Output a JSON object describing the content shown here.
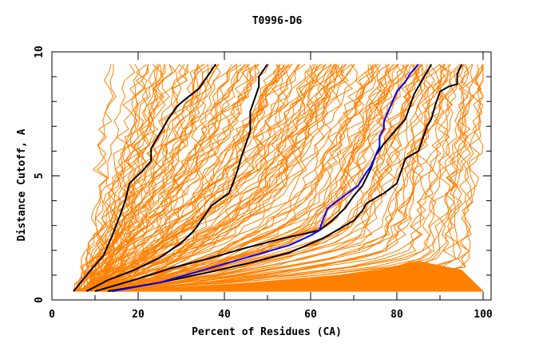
{
  "chart_data": {
    "type": "line",
    "title": "T0996-D6",
    "xlabel": "Percent of Residues (CA)",
    "ylabel": "Distance Cutoff, A",
    "xlim": [
      0,
      100
    ],
    "ylim": [
      0,
      10
    ],
    "x_ticks": [
      0,
      20,
      40,
      60,
      80,
      100
    ],
    "x_tick_labels": [
      "0",
      "20",
      "40",
      "60",
      "80",
      "100"
    ],
    "x_minor_ticks": [
      10,
      30,
      50,
      70,
      90
    ],
    "y_ticks": [
      0,
      5,
      10
    ],
    "y_tick_labels": [
      "0",
      "5",
      "10"
    ],
    "y_minor_ticks": [
      1,
      2,
      3,
      4,
      6,
      7,
      8,
      9
    ],
    "grid": false,
    "legend": "none",
    "colors": {
      "models": "#ff8000",
      "highlight_black": "#000000",
      "highlight_blue": "#0000ff"
    },
    "background_series": {
      "name": "all models (orange)",
      "count_approx": 150,
      "y_range": [
        0.35,
        9.5
      ],
      "x_start_range": [
        5,
        20
      ],
      "x_end_range": [
        15,
        100
      ]
    },
    "series": [
      {
        "name": "black-1",
        "color": "#000000",
        "points": [
          [
            5,
            0.35
          ],
          [
            9,
            1.2
          ],
          [
            12,
            1.8
          ],
          [
            14,
            2.6
          ],
          [
            16,
            3.5
          ],
          [
            17,
            4.0
          ],
          [
            18,
            4.7
          ],
          [
            21,
            5.2
          ],
          [
            23,
            5.6
          ],
          [
            23,
            6.1
          ],
          [
            25,
            6.7
          ],
          [
            27,
            7.3
          ],
          [
            29,
            7.8
          ],
          [
            31,
            8.1
          ],
          [
            34,
            8.5
          ],
          [
            36,
            9.0
          ],
          [
            38,
            9.5
          ]
        ]
      },
      {
        "name": "black-2",
        "color": "#000000",
        "points": [
          [
            8,
            0.35
          ],
          [
            13,
            0.8
          ],
          [
            19,
            1.2
          ],
          [
            25,
            1.7
          ],
          [
            30,
            2.3
          ],
          [
            33,
            2.8
          ],
          [
            35,
            3.3
          ],
          [
            37,
            3.8
          ],
          [
            41,
            4.3
          ],
          [
            42,
            4.7
          ],
          [
            43,
            5.2
          ],
          [
            44,
            5.8
          ],
          [
            45,
            6.3
          ],
          [
            46,
            6.8
          ],
          [
            46,
            7.6
          ],
          [
            47,
            8.1
          ],
          [
            48,
            8.6
          ],
          [
            48,
            9.0
          ],
          [
            50,
            9.5
          ]
        ]
      },
      {
        "name": "black-3",
        "color": "#000000",
        "points": [
          [
            10,
            0.35
          ],
          [
            19,
            0.8
          ],
          [
            28,
            1.3
          ],
          [
            37,
            1.7
          ],
          [
            45,
            2.1
          ],
          [
            54,
            2.5
          ],
          [
            62,
            2.8
          ],
          [
            65,
            3.2
          ],
          [
            68,
            3.7
          ],
          [
            70,
            4.2
          ],
          [
            72,
            4.6
          ],
          [
            74,
            5.3
          ],
          [
            75,
            5.8
          ],
          [
            77,
            6.3
          ],
          [
            80,
            6.9
          ],
          [
            82,
            7.3
          ],
          [
            83,
            7.8
          ],
          [
            84,
            8.3
          ],
          [
            86,
            8.9
          ],
          [
            88,
            9.5
          ]
        ]
      },
      {
        "name": "black-4",
        "color": "#000000",
        "points": [
          [
            13,
            0.35
          ],
          [
            25,
            0.7
          ],
          [
            36,
            1.1
          ],
          [
            46,
            1.5
          ],
          [
            55,
            1.9
          ],
          [
            63,
            2.5
          ],
          [
            70,
            3.2
          ],
          [
            72,
            3.6
          ],
          [
            73,
            3.9
          ],
          [
            77,
            4.3
          ],
          [
            80,
            4.7
          ],
          [
            81,
            5.2
          ],
          [
            82,
            5.7
          ],
          [
            85,
            6.0
          ],
          [
            86,
            6.5
          ],
          [
            87,
            7.0
          ],
          [
            88,
            7.3
          ],
          [
            89,
            7.9
          ],
          [
            90,
            8.4
          ],
          [
            92,
            8.6
          ],
          [
            94,
            8.7
          ],
          [
            94,
            9.1
          ],
          [
            95,
            9.5
          ]
        ]
      },
      {
        "name": "blue",
        "color": "#0000ff",
        "points": [
          [
            14,
            0.35
          ],
          [
            25,
            0.7
          ],
          [
            35,
            1.2
          ],
          [
            45,
            1.7
          ],
          [
            55,
            2.2
          ],
          [
            60,
            2.6
          ],
          [
            62,
            2.8
          ],
          [
            63,
            3.3
          ],
          [
            64,
            3.7
          ],
          [
            67,
            4.1
          ],
          [
            71,
            4.6
          ],
          [
            72,
            4.9
          ],
          [
            74,
            5.4
          ],
          [
            75,
            5.8
          ],
          [
            76,
            6.2
          ],
          [
            76,
            6.6
          ],
          [
            77,
            6.9
          ],
          [
            77,
            7.2
          ],
          [
            78,
            7.6
          ],
          [
            79,
            8.0
          ],
          [
            80,
            8.4
          ],
          [
            82,
            8.8
          ],
          [
            83,
            9.1
          ],
          [
            85,
            9.5
          ]
        ]
      }
    ]
  }
}
